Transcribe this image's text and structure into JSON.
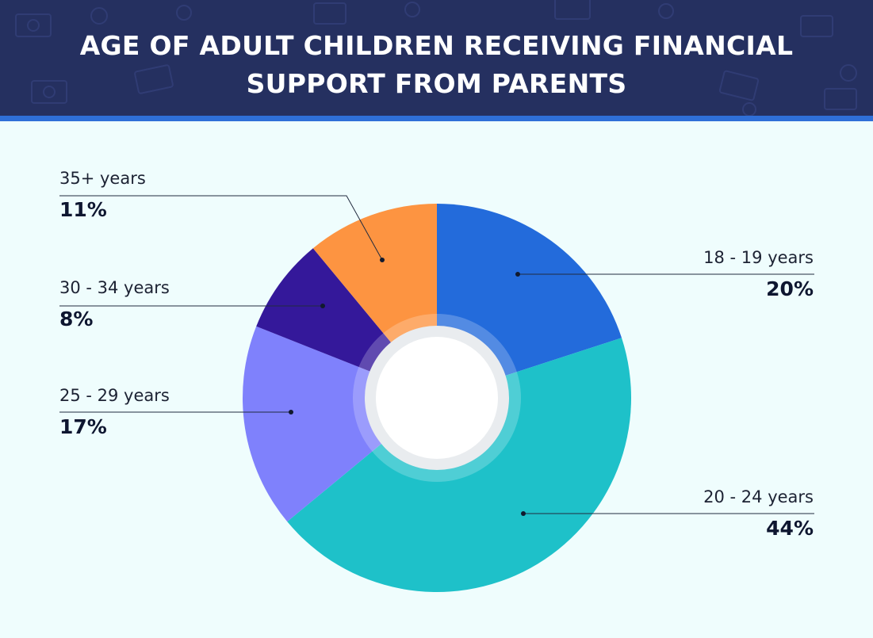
{
  "header": {
    "title_line1": "AGE OF ADULT CHILDREN RECEIVING FINANCIAL",
    "title_line2": "SUPPORT FROM PARENTS"
  },
  "colors": {
    "header_bg": "#253060",
    "accent_stripe": "#2f6fd8",
    "background": "#effdfd"
  },
  "chart_data": {
    "type": "pie",
    "title": "AGE OF ADULT CHILDREN RECEIVING FINANCIAL SUPPORT FROM PARENTS",
    "style": "donut",
    "slices": [
      {
        "label": "18 - 19 years",
        "value": 20,
        "value_label": "20%",
        "color": "#236bdb"
      },
      {
        "label": "20 - 24 years",
        "value": 44,
        "value_label": "44%",
        "color": "#1ec1c9"
      },
      {
        "label": "25 - 29 years",
        "value": 17,
        "value_label": "17%",
        "color": "#7f81fc"
      },
      {
        "label": "30 - 34 years",
        "value": 8,
        "value_label": "8%",
        "color": "#34189a"
      },
      {
        "label": "35+ years",
        "value": 11,
        "value_label": "11%",
        "color": "#fd9441"
      }
    ]
  }
}
